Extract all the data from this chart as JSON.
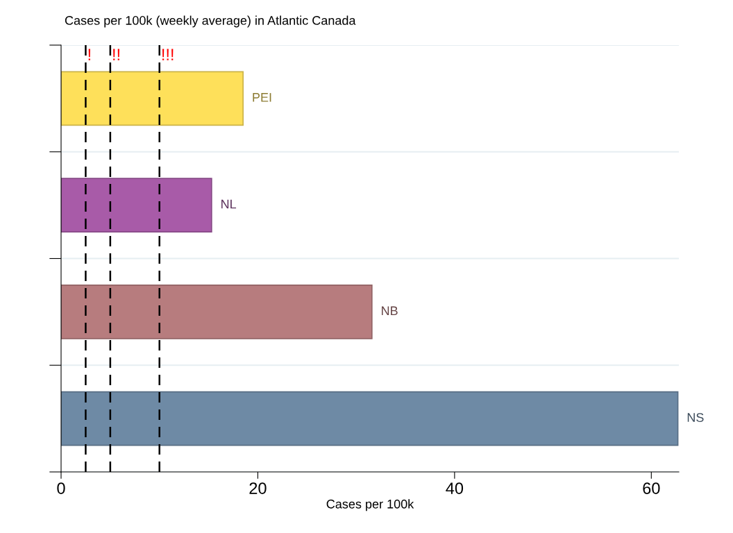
{
  "chart_data": {
    "type": "bar",
    "orientation": "horizontal",
    "title": "Cases per 100k (weekly average) in Atlantic Canada",
    "xlabel": "Cases per 100k",
    "categories": [
      "PEI",
      "NL",
      "NB",
      "NS"
    ],
    "values": [
      18.5,
      15.3,
      31.6,
      62.7
    ],
    "colors": [
      "#fee05a",
      "#a85ba8",
      "#b77c7e",
      "#6e8aa5"
    ],
    "xlim": [
      0,
      62.8
    ],
    "xticks": [
      0,
      20,
      40,
      60
    ],
    "ref_lines": [
      {
        "axis": "x",
        "value": 2.5,
        "label": "!",
        "color": "#000000",
        "line_style": "dashed"
      },
      {
        "axis": "x",
        "value": 5,
        "label": "!!",
        "color": "#000000",
        "line_style": "dashed"
      },
      {
        "axis": "x",
        "value": 10,
        "label": "!!!",
        "color": "#000000",
        "line_style": "dashed"
      }
    ],
    "grid": "y",
    "tick_labels": "x"
  }
}
